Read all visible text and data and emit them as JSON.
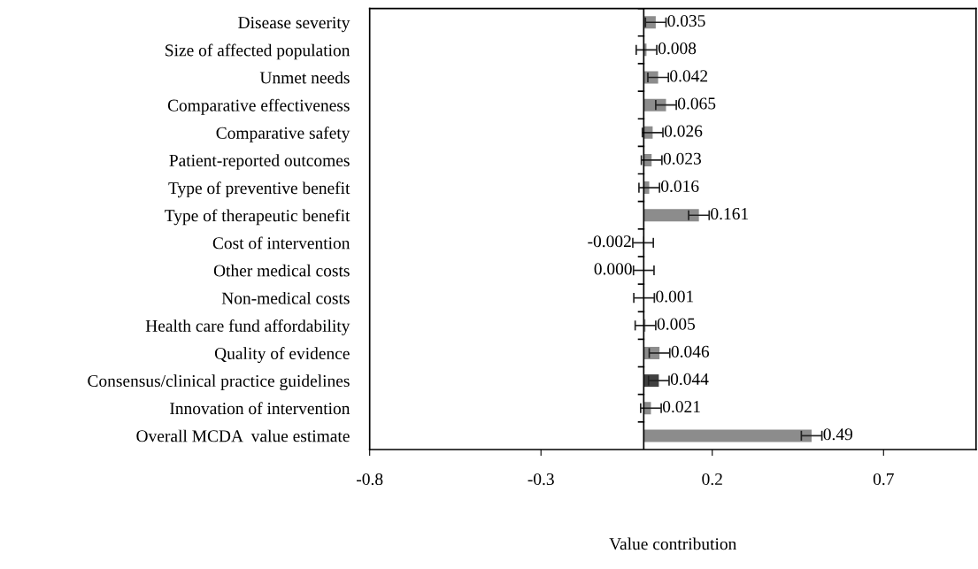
{
  "chart_data": {
    "type": "bar",
    "orientation": "horizontal",
    "xlabel": "Value contribution",
    "categories": [
      "Disease severity",
      "Size of affected population",
      "Unmet needs",
      "Comparative effectiveness",
      "Comparative safety",
      "Patient-reported outcomes",
      "Type of preventive benefit",
      "Type of therapeutic benefit",
      "Cost of intervention",
      "Other medical costs",
      "Non-medical costs",
      "Health care fund affordability",
      "Quality of evidence",
      "Consensus/clinical practice guidelines",
      "Innovation of intervention",
      "Overall MCDA  value estimate"
    ],
    "values": [
      0.035,
      0.008,
      0.042,
      0.065,
      0.026,
      0.023,
      0.016,
      0.161,
      -0.002,
      0.0,
      0.001,
      0.005,
      0.046,
      0.044,
      0.021,
      0.49
    ],
    "errors": [
      0.03,
      0.03,
      0.03,
      0.03,
      0.03,
      0.03,
      0.03,
      0.03,
      0.03,
      0.03,
      0.03,
      0.03,
      0.03,
      0.03,
      0.03,
      0.03
    ],
    "value_labels": [
      "0.035",
      "0.008",
      "0.042",
      "0.065",
      "0.026",
      "0.023",
      "0.016",
      "0.161",
      "-0.002",
      "0.000",
      "0.001",
      "0.005",
      "0.046",
      "0.044",
      "0.021",
      "0.49"
    ],
    "colors": [
      "#8c8c8c",
      "#8c8c8c",
      "#8c8c8c",
      "#8c8c8c",
      "#8c8c8c",
      "#8c8c8c",
      "#8c8c8c",
      "#8c8c8c",
      "#8c8c8c",
      "#8c8c8c",
      "#8c8c8c",
      "#8c8c8c",
      "#8c8c8c",
      "#404040",
      "#8c8c8c",
      "#8c8c8c"
    ],
    "xlim": [
      -0.8,
      0.97
    ],
    "xticks": [
      -0.8,
      -0.3,
      0.2,
      0.7
    ],
    "grid": false,
    "legend": false
  }
}
